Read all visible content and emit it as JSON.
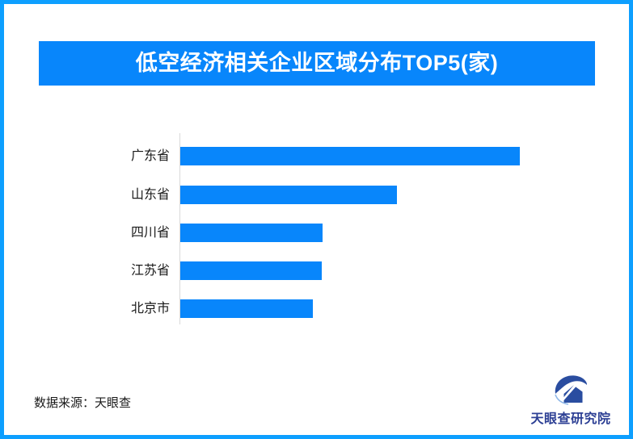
{
  "frame": {
    "border_color": "#0d9fff",
    "background_color": "#ffffff"
  },
  "header": {
    "title": "低空经济相关企业区域分布TOP5(家)",
    "bg_color": "#0886fb",
    "text_color": "#ffffff"
  },
  "chart_data": {
    "type": "bar",
    "orientation": "horizontal",
    "title": "低空经济相关企业区域分布TOP5(家)",
    "categories": [
      "广东省",
      "山东省",
      "四川省",
      "江苏省",
      "北京市"
    ],
    "values_pct_of_max": [
      100,
      63.8,
      41.9,
      41.7,
      39.0
    ],
    "value_labels_shown": false,
    "xlabel": "",
    "ylabel": "",
    "bar_color": "#0886fb",
    "axis_line_color": "#d9d9d9",
    "grid": false,
    "legend": "none"
  },
  "footer": {
    "source_label": "数据来源：天眼查"
  },
  "logo": {
    "text": "天眼查研究院",
    "text_color": "#2c3f94",
    "icon_name": "tianyancha-eye-logo-icon",
    "icon_main_color": "#2a4da0",
    "icon_accent_color": "#8fb8e8"
  }
}
